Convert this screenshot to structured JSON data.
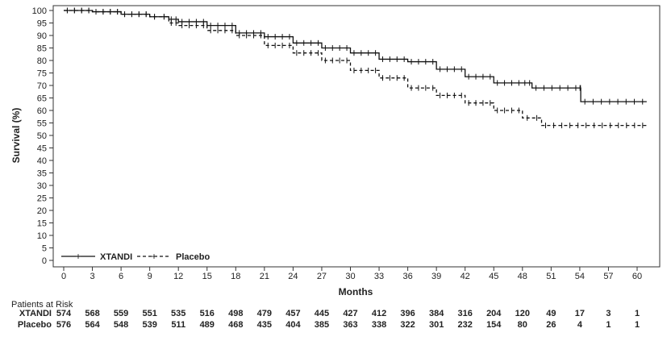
{
  "chart_data": {
    "type": "line",
    "title": "",
    "xlabel": "Months",
    "ylabel": "Survival (%)",
    "xlim": [
      0,
      61.5
    ],
    "ylim": [
      0,
      100
    ],
    "xticks": [
      0,
      3,
      6,
      9,
      12,
      15,
      18,
      21,
      24,
      27,
      30,
      33,
      36,
      39,
      42,
      45,
      48,
      51,
      54,
      57,
      60
    ],
    "yticks": [
      0,
      5,
      10,
      15,
      20,
      25,
      30,
      35,
      40,
      45,
      50,
      55,
      60,
      65,
      70,
      75,
      80,
      85,
      90,
      95,
      100
    ],
    "legend_position": "bottom-left",
    "series": [
      {
        "name": "XTANDI",
        "style": "solid",
        "x": [
          0,
          3,
          6,
          9,
          11,
          12,
          15,
          18,
          21,
          24,
          27,
          30,
          33,
          36,
          39,
          42,
          45,
          48,
          49,
          54,
          54.1,
          61
        ],
        "y": [
          100,
          99.5,
          98.5,
          97.5,
          96.5,
          95.5,
          94,
          91,
          89.5,
          87,
          85,
          83,
          80.5,
          79.5,
          76.5,
          73.5,
          71,
          71,
          69,
          69,
          63.5,
          63.5
        ]
      },
      {
        "name": "Placebo",
        "style": "dashed",
        "x": [
          0,
          3,
          6,
          9,
          11,
          12,
          15,
          18,
          21,
          24,
          27,
          30,
          33,
          36,
          39,
          42,
          45,
          48,
          50,
          61
        ],
        "y": [
          100,
          99.5,
          98.5,
          97.5,
          95,
          94,
          92,
          90,
          86,
          83,
          80,
          76,
          73,
          69,
          66,
          63,
          60,
          57,
          54,
          54
        ]
      }
    ],
    "risk_table": {
      "title": "Patients at Risk",
      "rows": [
        {
          "label": "XTANDI",
          "values": [
            "574",
            "568",
            "559",
            "551",
            "535",
            "516",
            "498",
            "479",
            "457",
            "445",
            "427",
            "412",
            "396",
            "384",
            "316",
            "204",
            "120",
            "49",
            "17",
            "3",
            "1"
          ]
        },
        {
          "label": "Placebo",
          "values": [
            "576",
            "564",
            "548",
            "539",
            "511",
            "489",
            "468",
            "435",
            "404",
            "385",
            "363",
            "338",
            "322",
            "301",
            "232",
            "154",
            "80",
            "26",
            "4",
            "1",
            "1"
          ]
        }
      ]
    }
  }
}
